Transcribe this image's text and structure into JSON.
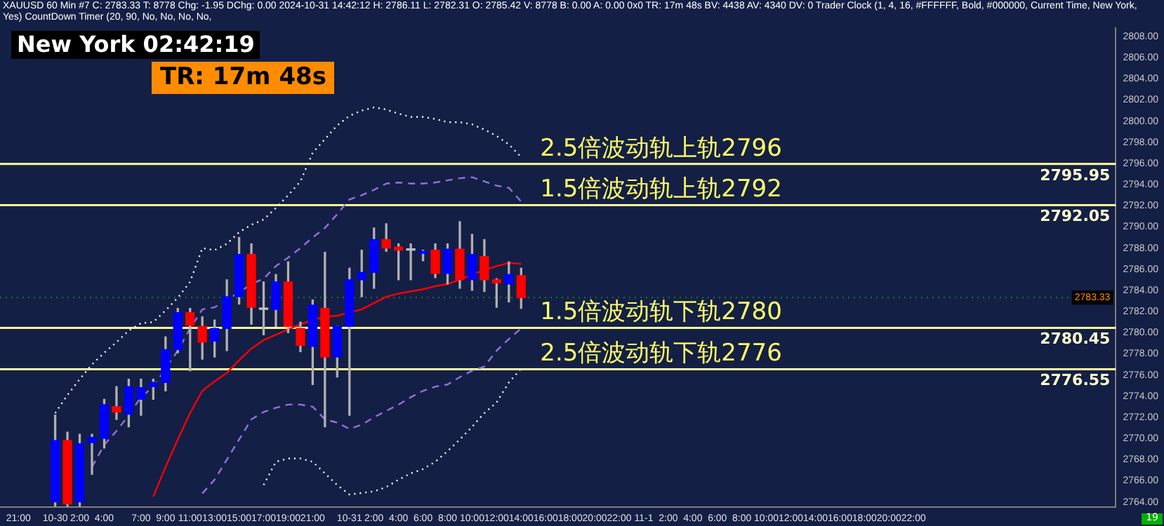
{
  "chart_data": {
    "type": "candlestick",
    "title": "XAUUSD  60 Min   #7 C: 2783.33 T: 8778 Chg: -1.95 DChg: 0.00 2024-10-31 14:42:12 H: 2786.11 L: 2782.31 O: 2785.42 V: 8778 B: 0.00 A: 0.00 0x0 TR: 17m 48s BV: 4438 AV: 4340 DV: 0 Trader Clock (1, 4, 16, #FFFFFF, Bold, #000000, Current Time, New York, Yes) CountDown Timer (20, 90, No, No, No, No,",
    "categories": [
      null,
      "21:00",
      null,
      null,
      "10-30",
      null,
      "2:00",
      null,
      "4:00",
      null,
      null,
      "7:00",
      null,
      "9:00",
      null,
      "11:00",
      null,
      "13:00",
      null,
      "15:00",
      null,
      "17:00",
      null,
      "19:00",
      null,
      "21:00",
      null,
      null,
      "10-31",
      null,
      "2:00",
      null,
      "4:00",
      null,
      "6:00",
      null,
      "8:00",
      null,
      "10:00",
      null,
      "12:00",
      null,
      "14:00",
      null,
      "16:00",
      null,
      "18:00",
      null,
      "20:00",
      null,
      "22:00",
      null,
      "11-1",
      null,
      "2:00",
      null,
      "4:00",
      null,
      "6:00",
      null,
      "8:00",
      null,
      "10:00",
      null,
      "12:00",
      null,
      "14:00",
      null,
      "16:00",
      null,
      "18:00",
      null,
      "20:00",
      null,
      "22:00",
      null,
      null,
      null,
      null,
      null,
      null,
      null,
      null,
      null,
      null,
      null,
      null,
      null,
      null,
      null,
      null
    ],
    "ohlc": [
      null,
      null,
      null,
      null,
      [
        2764.0,
        2772.2,
        2763.6,
        2769.8
      ],
      [
        2769.8,
        2770.6,
        2763.6,
        2763.8
      ],
      [
        2764.0,
        2770.4,
        2763.6,
        2769.5
      ],
      [
        2769.6,
        2770.4,
        2766.6,
        2770.1
      ],
      [
        2770.0,
        2773.7,
        2769.1,
        2773.2
      ],
      [
        2773.0,
        2774.9,
        2771.8,
        2772.5
      ],
      [
        2772.3,
        2775.6,
        2771.1,
        2774.9
      ],
      [
        2773.7,
        2775.6,
        2772.2,
        2774.8
      ],
      [
        2774.9,
        2775.6,
        2773.7,
        2775.3
      ],
      [
        2775.3,
        2779.6,
        2774.5,
        2778.4
      ],
      [
        2778.4,
        2782.3,
        2778.1,
        2781.9
      ],
      [
        2781.9,
        2782.3,
        2776.4,
        2780.7
      ],
      [
        2780.6,
        2781.5,
        2777.5,
        2779.1
      ],
      [
        2779.2,
        2781.2,
        2777.7,
        2780.4
      ],
      [
        2780.4,
        2785.0,
        2778.3,
        2783.4
      ],
      [
        2783.4,
        2789.0,
        2782.7,
        2787.4
      ],
      [
        2787.4,
        2788.4,
        2780.8,
        2782.4
      ],
      [
        2782.2,
        2784.8,
        2779.8,
        2782.2
      ],
      [
        2782.2,
        2785.5,
        2780.6,
        2784.8
      ],
      [
        2784.8,
        2786.7,
        2780.0,
        2780.6
      ],
      [
        2780.4,
        2781.0,
        2778.2,
        2778.8
      ],
      [
        2778.7,
        2783.1,
        2775.1,
        2782.6
      ],
      [
        2782.3,
        2787.6,
        2771.1,
        2777.7
      ],
      [
        2777.7,
        2780.6,
        2775.8,
        2780.6
      ],
      [
        2780.6,
        2786.1,
        2772.2,
        2785.0
      ],
      [
        2785.0,
        2787.8,
        2783.4,
        2785.7
      ],
      [
        2785.7,
        2789.9,
        2784.2,
        2788.8
      ],
      [
        2788.8,
        2790.3,
        2787.7,
        2788.0
      ],
      [
        2788.1,
        2788.4,
        2785.0,
        2787.8
      ],
      [
        2787.8,
        2788.4,
        2785.0,
        2787.8
      ],
      [
        2787.5,
        2787.8,
        2786.8,
        2787.7
      ],
      [
        2787.8,
        2788.4,
        2785.2,
        2785.6
      ],
      [
        2785.6,
        2788.4,
        2784.6,
        2787.9
      ],
      [
        2787.9,
        2790.5,
        2784.2,
        2785.0
      ],
      [
        2785.0,
        2789.3,
        2784.0,
        2787.4
      ],
      [
        2787.2,
        2788.8,
        2783.9,
        2785.0
      ],
      [
        2785.0,
        2785.1,
        2782.4,
        2784.7
      ],
      [
        2784.6,
        2786.7,
        2782.9,
        2785.5
      ],
      [
        2785.4,
        2786.1,
        2782.3,
        2783.3
      ],
      null,
      null,
      null,
      null,
      null,
      null,
      null,
      null,
      null,
      null,
      null,
      null,
      null,
      null,
      null,
      null,
      null,
      null,
      null,
      null,
      null,
      null,
      null,
      null,
      null,
      null,
      null,
      null,
      null,
      null,
      null,
      null,
      null,
      null,
      null,
      null,
      null,
      null,
      null,
      null,
      null,
      null,
      null,
      null,
      null,
      null,
      null,
      null
    ],
    "colors": [
      null,
      null,
      null,
      null,
      "#0000ff",
      "#ff0000",
      "#0000ff",
      "#0000ff",
      "#0000ff",
      "#ff0000",
      "#0000ff",
      "#0000ff",
      "#0000ff",
      "#0000ff",
      "#0000ff",
      "#ff0000",
      "#ff0000",
      "#0000ff",
      "#0000ff",
      "#0000ff",
      "#ff0000",
      "#c0c0c0",
      "#0000ff",
      "#ff0000",
      "#ff0000",
      "#0000ff",
      "#ff0000",
      "#0000ff",
      "#0000ff",
      "#0000ff",
      "#0000ff",
      "#ff0000",
      "#ff0000",
      "#c0c0c0",
      "#0000ff",
      "#ff0000",
      "#0000ff",
      "#ff0000",
      "#0000ff",
      "#ff0000",
      "#ff0000",
      "#0000ff",
      "#ff0000",
      null,
      null,
      null,
      null,
      null,
      null,
      null,
      null,
      null,
      null,
      null,
      null,
      null,
      null,
      null,
      null,
      null,
      null,
      null,
      null,
      null,
      null,
      null,
      null,
      null,
      null,
      null,
      null,
      null,
      null,
      null,
      null,
      null,
      null,
      null,
      null,
      null,
      null,
      null,
      null,
      null,
      null,
      null,
      null,
      null,
      null,
      null,
      null
    ],
    "series": [
      {
        "type": "line",
        "color": "#ff0000",
        "line_style": "solid",
        "values": [
          null,
          null,
          null,
          null,
          null,
          null,
          null,
          null,
          null,
          null,
          null,
          null,
          2764.5,
          2767.3,
          2769.9,
          2772.4,
          2774.5,
          2775.4,
          2776.2,
          2777.4,
          2778.5,
          2779.3,
          2779.8,
          2780.3,
          2780.8,
          2781.2,
          2781.5,
          2781.6,
          2781.9,
          2782.2,
          2782.8,
          2783.4,
          2783.7,
          2783.9,
          2784.1,
          2784.4,
          2784.6,
          2785.0,
          2785.5,
          2785.9,
          2786.3,
          2786.6,
          2786.5,
          null,
          null,
          null,
          null,
          null,
          null,
          null,
          null,
          null,
          null,
          null,
          null,
          null,
          null,
          null,
          null,
          null,
          null,
          null,
          null,
          null,
          null,
          null,
          null,
          null,
          null,
          null,
          null,
          null,
          null,
          null,
          null,
          null,
          null,
          null,
          null,
          null,
          null,
          null,
          null,
          null,
          null,
          null,
          null,
          null,
          null,
          null,
          null
        ]
      },
      {
        "type": "line",
        "color": "#ffffff",
        "line_style": "dotted",
        "values": [
          null,
          null,
          null,
          null,
          2772.4,
          2774.1,
          2775.6,
          2777.0,
          2778.1,
          2779.1,
          2780.2,
          2780.9,
          2781.0,
          2782.1,
          2783.3,
          2784.8,
          2788.0,
          2787.8,
          2788.4,
          2789.5,
          2790.2,
          2790.7,
          2791.8,
          2793.0,
          2794.3,
          2797.0,
          2798.3,
          2799.6,
          2800.5,
          2801.0,
          2801.3,
          2801.1,
          2800.7,
          2800.4,
          2800.4,
          2800.2,
          2799.9,
          2799.9,
          2799.7,
          2799.2,
          2798.6,
          2797.8,
          2796.6,
          null,
          null,
          null,
          null,
          null,
          null,
          null,
          null,
          null,
          null,
          null,
          null,
          null,
          null,
          null,
          null,
          null,
          null,
          null,
          null,
          null,
          null,
          null,
          null,
          null,
          null,
          null,
          null,
          null,
          null,
          null,
          null,
          null,
          null,
          null,
          null,
          null,
          null,
          null,
          null,
          null,
          null,
          null,
          null,
          null,
          null,
          null,
          null
        ]
      },
      {
        "type": "line",
        "color": "#9370db",
        "line_style": "dashed",
        "values": [
          null,
          null,
          null,
          null,
          null,
          null,
          null,
          2767.3,
          2769.4,
          2770.7,
          2772.2,
          2773.9,
          2774.9,
          2776.6,
          2778.3,
          2780.4,
          2782.2,
          2782.4,
          null,
          2783.8,
          2784.6,
          2785.1,
          2786.3,
          2787.1,
          2788.0,
          2789.0,
          2789.9,
          2791.2,
          2792.6,
          2793.0,
          2793.5,
          2794.1,
          2794.2,
          2794.1,
          2794.1,
          2794.2,
          2794.4,
          2794.6,
          2794.7,
          2794.3,
          2793.9,
          2793.7,
          2792.4,
          null,
          null,
          null,
          null,
          null,
          null,
          null,
          null,
          null,
          null,
          null,
          null,
          null,
          null,
          null,
          null,
          null,
          null,
          null,
          null,
          null,
          null,
          null,
          null,
          null,
          null,
          null,
          null,
          null,
          null,
          null,
          null,
          null,
          null,
          null,
          null,
          null,
          null,
          null,
          null,
          null,
          null,
          null,
          null,
          null,
          null,
          null,
          null
        ]
      },
      {
        "type": "line",
        "color": "#9370db",
        "line_style": "dashed",
        "values": [
          null,
          null,
          null,
          null,
          null,
          null,
          null,
          null,
          null,
          null,
          null,
          null,
          null,
          null,
          null,
          null,
          2764.8,
          2766.1,
          2768.0,
          2769.9,
          2771.8,
          2772.5,
          2772.9,
          2773.2,
          2773.2,
          2773.0,
          2771.8,
          2771.5,
          2770.9,
          2771.3,
          2772.0,
          2772.6,
          2773.2,
          2773.9,
          2774.5,
          2774.9,
          2775.1,
          2775.8,
          2776.4,
          2776.8,
          2778.3,
          2779.4,
          2780.4,
          null,
          null,
          null,
          null,
          null,
          null,
          null,
          null,
          null,
          null,
          null,
          null,
          null,
          null,
          null,
          null,
          null,
          null,
          null,
          null,
          null,
          null,
          null,
          null,
          null,
          null,
          null,
          null,
          null,
          null,
          null,
          null,
          null,
          null,
          null,
          null,
          null,
          null,
          null,
          null,
          null,
          null,
          null,
          null,
          null,
          null,
          null,
          null
        ]
      },
      {
        "type": "line",
        "color": "#ffffff",
        "line_style": "dotted",
        "values": [
          null,
          null,
          null,
          null,
          null,
          null,
          null,
          null,
          null,
          null,
          null,
          null,
          null,
          null,
          null,
          null,
          null,
          null,
          null,
          null,
          null,
          2765.6,
          2767.8,
          2768.1,
          2768.1,
          2767.8,
          2766.7,
          2765.6,
          2764.7,
          null,
          2765.0,
          2765.4,
          2766.1,
          2766.7,
          2767.1,
          2767.8,
          2768.8,
          2769.9,
          2771.1,
          2772.4,
          2773.4,
          2775.3,
          2776.6,
          null,
          null,
          null,
          null,
          null,
          null,
          null,
          null,
          null,
          null,
          null,
          null,
          null,
          null,
          null,
          null,
          null,
          null,
          null,
          null,
          null,
          null,
          null,
          null,
          null,
          null,
          null,
          null,
          null,
          null,
          null,
          null,
          null,
          null,
          null,
          null,
          null,
          null,
          null,
          null,
          null,
          null,
          null,
          null,
          null,
          null,
          null,
          null
        ]
      }
    ],
    "ylim": [
      2763.5,
      2808.8
    ],
    "yticks": [
      {
        "value": 2764,
        "label": "2764.00"
      },
      {
        "value": 2766,
        "label": "2766.00"
      },
      {
        "value": 2768,
        "label": "2768.00"
      },
      {
        "value": 2770,
        "label": "2770.00"
      },
      {
        "value": 2772,
        "label": "2772.00"
      },
      {
        "value": 2774,
        "label": "2774.00"
      },
      {
        "value": 2776,
        "label": "2776.00"
      },
      {
        "value": 2778,
        "label": "2778.00"
      },
      {
        "value": 2780,
        "label": "2780.00"
      },
      {
        "value": 2782,
        "label": "2782.00"
      },
      {
        "value": 2784,
        "label": "2784.00"
      },
      {
        "value": 2786,
        "label": "2786.00"
      },
      {
        "value": 2788,
        "label": "2788.00"
      },
      {
        "value": 2790,
        "label": "2790.00"
      },
      {
        "value": 2792,
        "label": "2792.00"
      },
      {
        "value": 2794,
        "label": "2794.00"
      },
      {
        "value": 2796,
        "label": "2796.00"
      },
      {
        "value": 2798,
        "label": "2798.00"
      },
      {
        "value": 2800,
        "label": "2800.00"
      },
      {
        "value": 2802,
        "label": "2802.00"
      },
      {
        "value": 2804,
        "label": "2804.00"
      },
      {
        "value": 2806,
        "label": "2806.00"
      },
      {
        "value": 2808,
        "label": "2808.00"
      }
    ],
    "ref_lines": [
      {
        "axis": "y",
        "value": 2795.95,
        "label": "2795.95",
        "color": "#ffff99",
        "line_style": "solid"
      },
      {
        "axis": "y",
        "value": 2792.05,
        "label": "2792.05",
        "color": "#ffff99",
        "line_style": "solid"
      },
      {
        "axis": "y",
        "value": 2780.45,
        "label": "2780.45",
        "color": "#ffff99",
        "line_style": "solid"
      },
      {
        "axis": "y",
        "value": 2776.55,
        "label": "2776.55",
        "color": "#ffff99",
        "line_style": "solid"
      },
      {
        "axis": "y",
        "value": 2783.33,
        "label": "2783.33",
        "color": "#1e7a1e",
        "line_style": "dotted"
      }
    ],
    "annotations": [
      {
        "text": "2.5倍波动轨上轨2796",
        "y": 2795.95
      },
      {
        "text": "1.5倍波动轨上轨2792",
        "y": 2792.05
      },
      {
        "text": "1.5倍波动轨下轨2780",
        "y": 2780.45
      },
      {
        "text": "2.5倍波动轨下轨2776",
        "y": 2776.55
      },
      "New York 02:42:19",
      "TR: 17m 48s",
      "19"
    ],
    "marker": "none"
  }
}
